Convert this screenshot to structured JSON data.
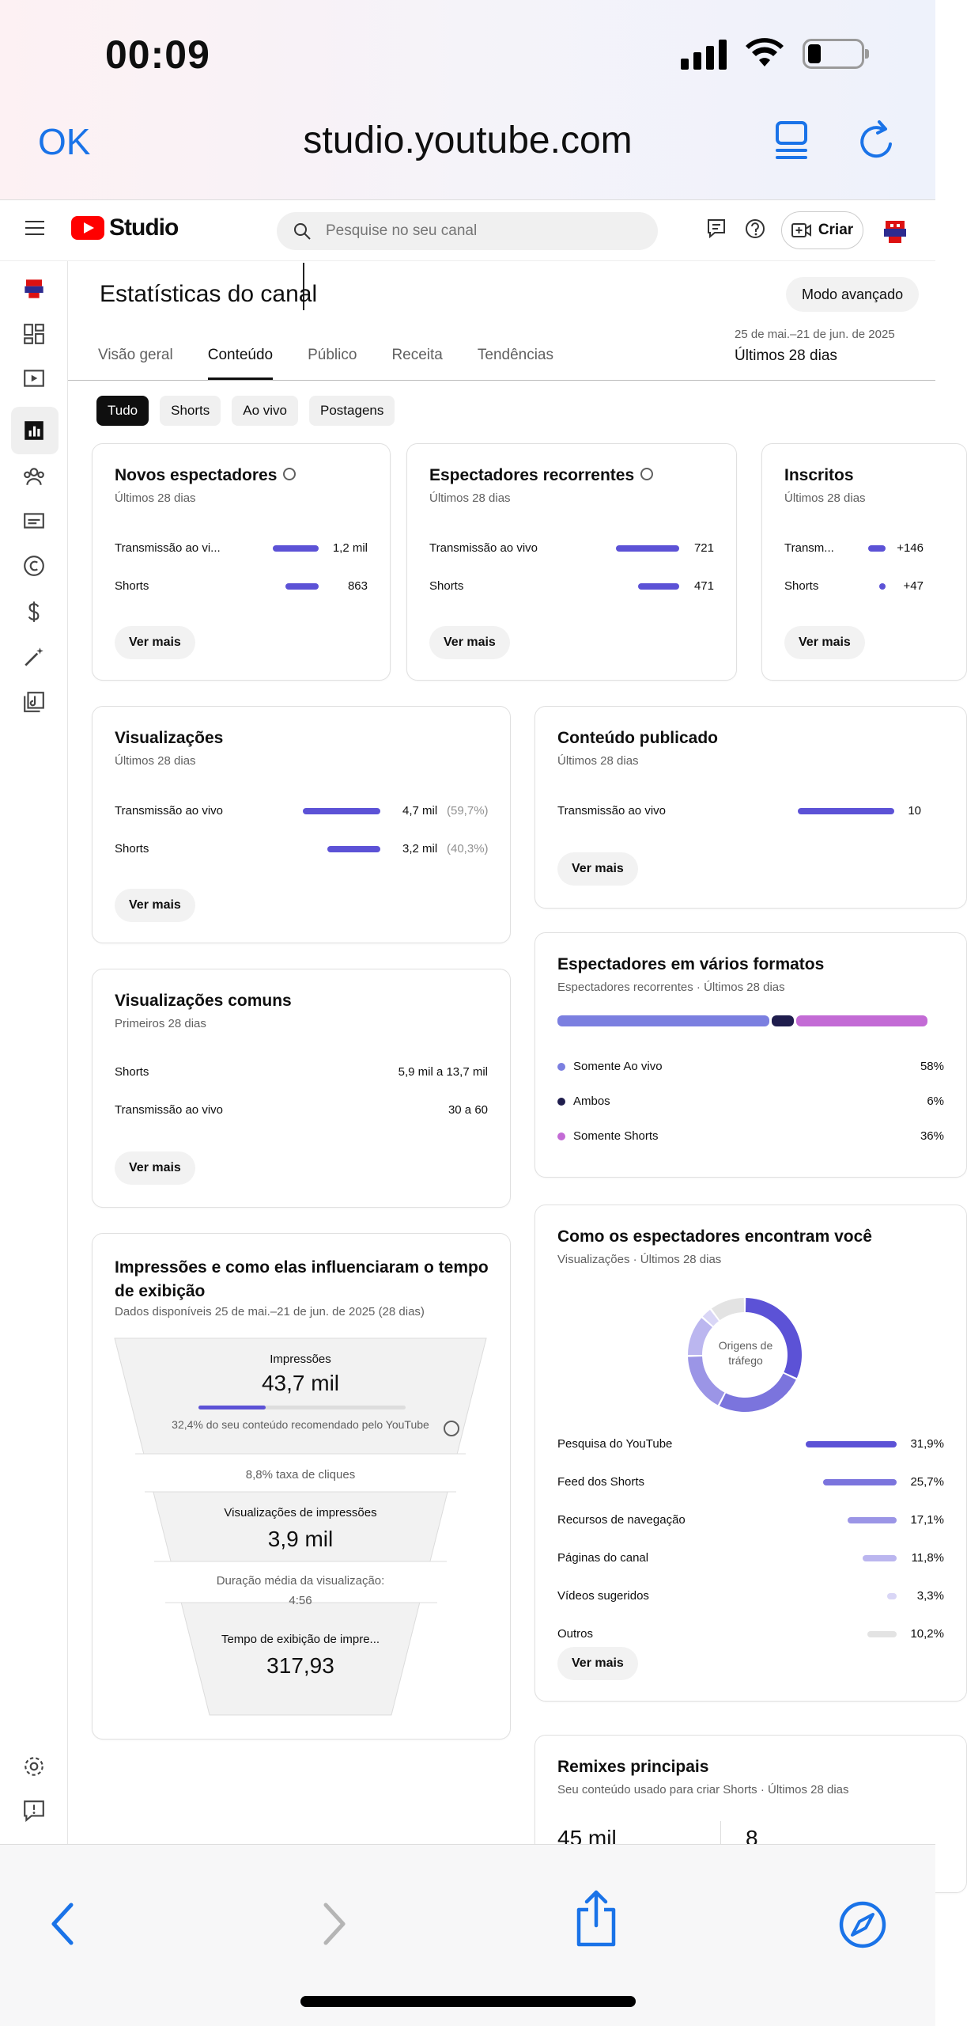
{
  "status_bar": {
    "time": "00:09"
  },
  "safari": {
    "done_label": "OK",
    "url": "studio.youtube.com"
  },
  "header": {
    "logo_text": "Studio",
    "search_placeholder": "Pesquise no seu canal",
    "create_label": "Criar"
  },
  "page": {
    "title": "Estatísticas do canal",
    "advanced_button": "Modo avançado",
    "tabs": [
      "Visão geral",
      "Conteúdo",
      "Público",
      "Receita",
      "Tendências"
    ],
    "active_tab": 1,
    "date_range_small": "25 de mai.–21 de jun. de 2025",
    "date_range_label": "Últimos 28 dias",
    "chips": [
      "Tudo",
      "Shorts",
      "Ao vivo",
      "Postagens"
    ],
    "active_chip": 0
  },
  "cards": {
    "new_viewers": {
      "title": "Novos espectadores",
      "subtitle": "Últimos 28 dias",
      "rows": [
        {
          "label": "Transmissão ao vi...",
          "value": "1,2 mil",
          "fraction": 1.0
        },
        {
          "label": "Shorts",
          "value": "863",
          "fraction": 0.72
        }
      ],
      "button": "Ver mais"
    },
    "returning_viewers": {
      "title": "Espectadores recorrentes",
      "subtitle": "Últimos 28 dias",
      "rows": [
        {
          "label": "Transmissão ao vivo",
          "value": "721",
          "fraction": 1.0
        },
        {
          "label": "Shorts",
          "value": "471",
          "fraction": 0.65
        }
      ],
      "button": "Ver mais"
    },
    "subscribers": {
      "title": "Inscritos",
      "subtitle": "Últimos 28 dias",
      "rows": [
        {
          "label": "Transm...",
          "value": "+146",
          "fraction": 1.0
        },
        {
          "label": "Shorts",
          "value": "+47",
          "fraction": 0.32
        }
      ],
      "button": "Ver mais"
    },
    "views": {
      "title": "Visualizações",
      "subtitle": "Últimos 28 dias",
      "rows": [
        {
          "label": "Transmissão ao vivo",
          "value": "4,7 mil",
          "pct": "(59,7%)",
          "fraction": 1.0
        },
        {
          "label": "Shorts",
          "value": "3,2 mil",
          "pct": "(40,3%)",
          "fraction": 0.68
        }
      ],
      "button": "Ver mais"
    },
    "published": {
      "title": "Conteúdo publicado",
      "subtitle": "Últimos 28 dias",
      "rows": [
        {
          "label": "Transmissão ao vivo",
          "value": "10",
          "fraction": 1.0
        }
      ],
      "button": "Ver mais"
    },
    "common_views": {
      "title": "Visualizações comuns",
      "subtitle": "Primeiros 28 dias",
      "rows": [
        {
          "label": "Shorts",
          "value": "5,9 mil a 13,7 mil"
        },
        {
          "label": "Transmissão ao vivo",
          "value": "30 a 60"
        }
      ],
      "button": "Ver mais"
    },
    "multi_format": {
      "title": "Espectadores em vários formatos",
      "subtitle": "Espectadores recorrentes · Últimos 28 dias",
      "segments": [
        {
          "label": "Somente Ao vivo",
          "value": "58%",
          "share": 58,
          "color": "#7b7fe0"
        },
        {
          "label": "Ambos",
          "value": "6%",
          "share": 6,
          "color": "#1f1d4d"
        },
        {
          "label": "Somente Shorts",
          "value": "36%",
          "share": 36,
          "color": "#c36bd5"
        }
      ]
    },
    "traffic": {
      "title": "Como os espectadores encontram você",
      "subtitle": "Visualizações · Últimos 28 dias",
      "donut_label": "Origens de tráfego",
      "rows": [
        {
          "label": "Pesquisa do YouTube",
          "value": "31,9%",
          "share": 31.9,
          "color": "#5c52d6"
        },
        {
          "label": "Feed dos Shorts",
          "value": "25,7%",
          "share": 25.7,
          "color": "#7b74dd"
        },
        {
          "label": "Recursos de navegação",
          "value": "17,1%",
          "share": 17.1,
          "color": "#9b95e6"
        },
        {
          "label": "Páginas do canal",
          "value": "11,8%",
          "share": 11.8,
          "color": "#bbb6ef"
        },
        {
          "label": "Vídeos sugeridos",
          "value": "3,3%",
          "share": 3.3,
          "color": "#d9d6f6"
        },
        {
          "label": "Outros",
          "value": "10,2%",
          "share": 10.2,
          "color": "#e3e3e3"
        }
      ],
      "button": "Ver mais"
    },
    "impressions": {
      "title": "Impressões e como elas influenciaram o tempo de exibição",
      "subtitle": "Dados disponíveis 25 de mai.–21 de jun. de 2025 (28 dias)",
      "impressions_label": "Impressões",
      "impressions_value": "43,7 mil",
      "recommended_fraction": 0.324,
      "recommended_text": "32,4% do seu conteúdo recomendado pelo YouTube",
      "ctr_text": "8,8% taxa de cliques",
      "views_label": "Visualizações de impressões",
      "views_value": "3,9 mil",
      "avg_duration_label": "Duração média da visualização:",
      "avg_duration_value": "4:56",
      "watch_time_label": "Tempo de exibição de impre...",
      "watch_time_value": "317,93"
    },
    "remixes": {
      "title": "Remixes principais",
      "subtitle": "Seu conteúdo usado para criar Shorts · Últimos 28 dias",
      "value_1": "45 mil",
      "value_2": "8"
    }
  }
}
